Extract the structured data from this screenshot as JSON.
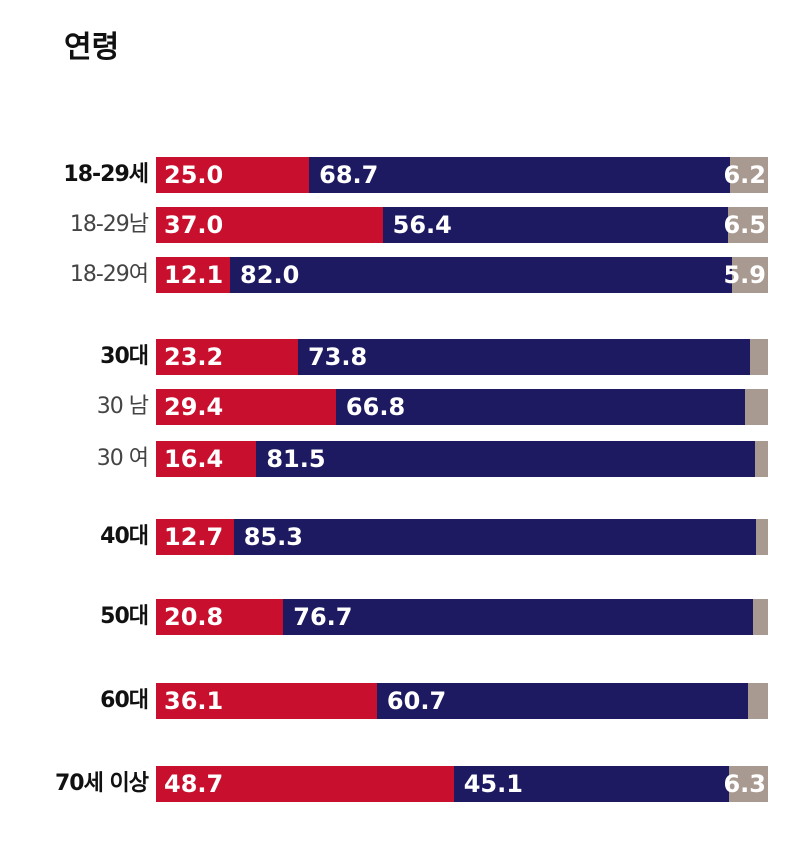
{
  "title": "연령",
  "colors": {
    "seg1": "#c8102e",
    "seg2": "#1e1a62",
    "seg3": "#a89a90"
  },
  "chart_data": {
    "type": "bar",
    "orientation": "horizontal",
    "stacked": true,
    "title": "연령",
    "xlim": [
      0,
      100
    ],
    "categories": [
      "18-29세",
      "18-29남",
      "18-29여",
      "30대",
      "30 남",
      "30 여",
      "40대",
      "50대",
      "60대",
      "70세 이상"
    ],
    "category_emphasis": [
      "bold",
      "light",
      "light",
      "bold",
      "light",
      "light",
      "bold",
      "bold",
      "bold",
      "bold"
    ],
    "series": [
      {
        "values": [
          25.0,
          37.0,
          12.1,
          23.2,
          29.4,
          16.4,
          12.7,
          20.8,
          36.1,
          48.7
        ],
        "labels": [
          "25.0",
          "37.0",
          "12.1",
          "23.2",
          "29.4",
          "16.4",
          "12.7",
          "20.8",
          "36.1",
          "48.7"
        ]
      },
      {
        "values": [
          68.7,
          56.4,
          82.0,
          73.8,
          66.8,
          81.5,
          85.3,
          76.7,
          60.7,
          45.1
        ],
        "labels": [
          "68.7",
          "56.4",
          "82.0",
          "73.8",
          "66.8",
          "81.5",
          "85.3",
          "76.7",
          "60.7",
          "45.1"
        ]
      },
      {
        "values": [
          6.2,
          6.5,
          5.9,
          3.0,
          3.8,
          2.1,
          2.0,
          2.5,
          3.2,
          6.3
        ],
        "labels": [
          "6.2",
          "6.5",
          "5.9",
          "",
          "",
          "",
          "",
          "",
          "",
          "6.3"
        ]
      }
    ]
  }
}
